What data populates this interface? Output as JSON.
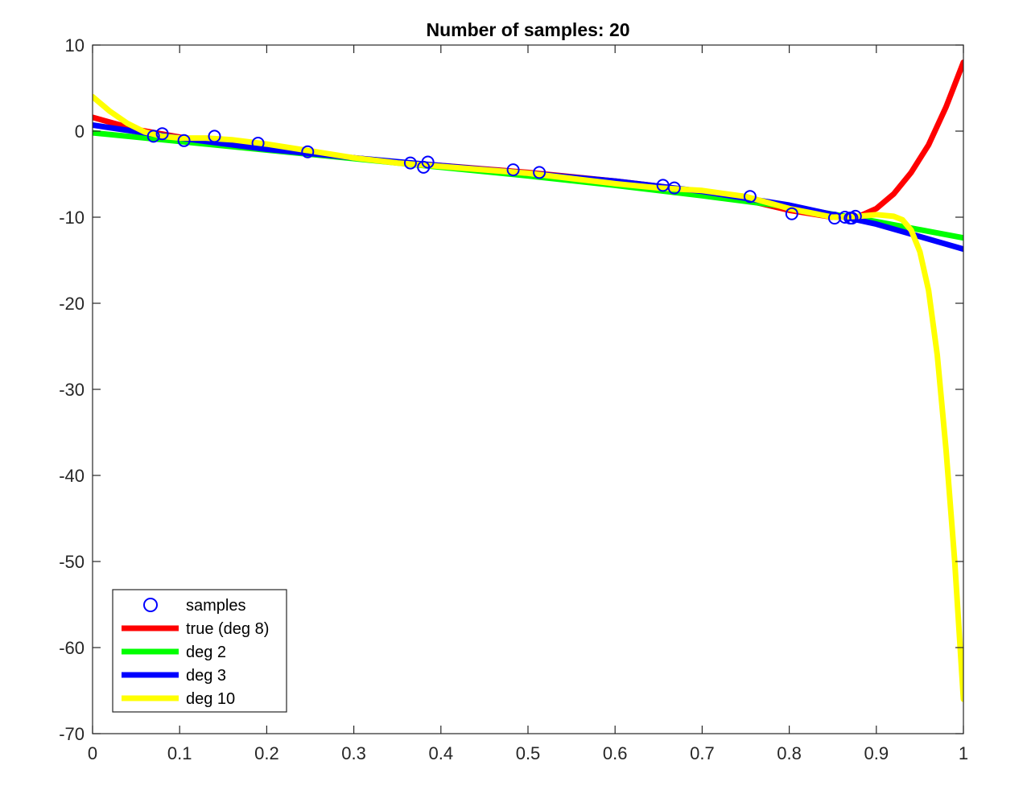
{
  "chart_data": {
    "type": "line",
    "title": "Number of samples: 20",
    "xlabel": "",
    "ylabel": "",
    "xlim": [
      0,
      1
    ],
    "ylim": [
      -70,
      10
    ],
    "xticks": [
      0,
      0.1,
      0.2,
      0.3,
      0.4,
      0.5,
      0.6,
      0.7,
      0.8,
      0.9,
      1
    ],
    "xtick_labels": [
      "0",
      "0.1",
      "0.2",
      "0.3",
      "0.4",
      "0.5",
      "0.6",
      "0.7",
      "0.8",
      "0.9",
      "1"
    ],
    "yticks": [
      10,
      0,
      -10,
      -20,
      -30,
      -40,
      -50,
      -60,
      -70
    ],
    "ytick_labels": [
      "10",
      "0",
      "-10",
      "-20",
      "-30",
      "-40",
      "-50",
      "-60",
      "-70"
    ],
    "grid": false,
    "legend_position": "bottom-left",
    "samples": {
      "name": "samples",
      "color": "#0000ff",
      "marker": "circle",
      "x": [
        0.07,
        0.08,
        0.105,
        0.14,
        0.19,
        0.247,
        0.365,
        0.38,
        0.385,
        0.483,
        0.513,
        0.655,
        0.668,
        0.755,
        0.803,
        0.852,
        0.864,
        0.87,
        0.872,
        0.876
      ],
      "y": [
        -0.6,
        -0.3,
        -1.1,
        -0.6,
        -1.4,
        -2.4,
        -3.7,
        -4.2,
        -3.6,
        -4.5,
        -4.8,
        -6.3,
        -6.6,
        -7.6,
        -9.6,
        -10.1,
        -10.0,
        -10.1,
        -10.1,
        -9.9
      ]
    },
    "series": [
      {
        "name": "true (deg 8)",
        "color": "#ff0000",
        "x": [
          0,
          0.05,
          0.1,
          0.15,
          0.2,
          0.25,
          0.3,
          0.35,
          0.4,
          0.45,
          0.5,
          0.55,
          0.6,
          0.65,
          0.7,
          0.75,
          0.8,
          0.85,
          0.88,
          0.9,
          0.92,
          0.94,
          0.96,
          0.98,
          1.0
        ],
        "y": [
          1.6,
          0.2,
          -0.7,
          -1.4,
          -2.0,
          -2.6,
          -3.1,
          -3.6,
          -4.0,
          -4.4,
          -4.8,
          -5.3,
          -5.8,
          -6.4,
          -7.1,
          -8.0,
          -9.2,
          -10.0,
          -9.9,
          -9.0,
          -7.3,
          -4.8,
          -1.6,
          2.8,
          8.0
        ]
      },
      {
        "name": "deg 2",
        "color": "#00ff00",
        "x": [
          0,
          0.1,
          0.2,
          0.3,
          0.4,
          0.5,
          0.6,
          0.7,
          0.8,
          0.9,
          1.0
        ],
        "y": [
          -0.2,
          -1.2,
          -2.2,
          -3.2,
          -4.2,
          -5.2,
          -6.3,
          -7.5,
          -8.8,
          -10.5,
          -12.4
        ]
      },
      {
        "name": "deg 3",
        "color": "#0000ff",
        "x": [
          0,
          0.1,
          0.2,
          0.3,
          0.4,
          0.5,
          0.6,
          0.7,
          0.8,
          0.9,
          1.0
        ],
        "y": [
          0.7,
          -0.8,
          -2.1,
          -3.1,
          -4.0,
          -4.9,
          -5.8,
          -7.0,
          -8.6,
          -10.8,
          -13.7
        ]
      },
      {
        "name": "deg 10",
        "color": "#ffff00",
        "x": [
          0,
          0.02,
          0.04,
          0.06,
          0.08,
          0.1,
          0.13,
          0.16,
          0.2,
          0.25,
          0.3,
          0.35,
          0.4,
          0.45,
          0.5,
          0.55,
          0.6,
          0.65,
          0.7,
          0.75,
          0.8,
          0.85,
          0.88,
          0.9,
          0.92,
          0.93,
          0.94,
          0.95,
          0.96,
          0.97,
          0.98,
          0.99,
          1.0
        ],
        "y": [
          4.0,
          2.3,
          0.9,
          -0.1,
          -0.6,
          -0.8,
          -0.8,
          -1.0,
          -1.5,
          -2.3,
          -3.1,
          -3.7,
          -4.1,
          -4.5,
          -4.9,
          -5.5,
          -6.1,
          -6.6,
          -6.9,
          -7.6,
          -9.0,
          -10.0,
          -9.9,
          -9.7,
          -9.9,
          -10.3,
          -11.5,
          -14.0,
          -18.5,
          -26.0,
          -37.0,
          -50.0,
          -66.0
        ]
      }
    ]
  }
}
